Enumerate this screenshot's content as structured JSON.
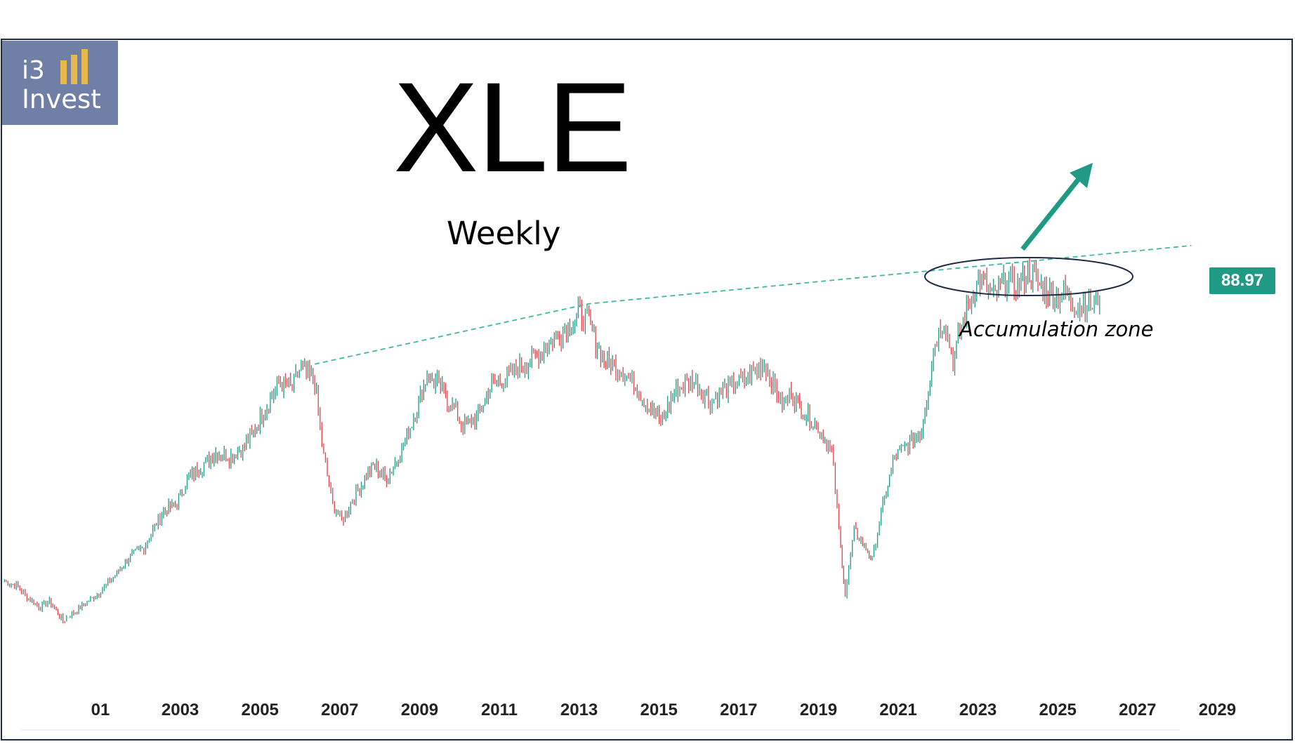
{
  "title": "XLE",
  "subtitle": "Weekly",
  "logo": {
    "line1": "i3",
    "line2": "Invest"
  },
  "price_label": "88.97",
  "annotation": "Accumulation zone",
  "colors": {
    "up": "#1f9a85",
    "down": "#e0424a",
    "trendline": "#3fb8a2",
    "arrow": "#1f9a85",
    "badge": "#1f9a85"
  },
  "chart_data": {
    "type": "line",
    "title": "XLE",
    "subtitle": "Weekly",
    "x_ticks": [
      "01",
      "2003",
      "2005",
      "2007",
      "2009",
      "2011",
      "2013",
      "2015",
      "2017",
      "2019",
      "2021",
      "2023",
      "2025",
      "2027",
      "2029"
    ],
    "xlim": [
      2001.4,
      2030.2
    ],
    "series": [
      {
        "x": [
          2001.5,
          2001.8,
          2002.0,
          2002.3,
          2002.5,
          2002.8,
          2003.0,
          2003.3,
          2003.6,
          2004.0,
          2004.3,
          2004.6,
          2005.0,
          2005.3,
          2005.6,
          2005.9,
          2006.2,
          2006.5,
          2006.8,
          2007.0,
          2007.3,
          2007.6,
          2007.9,
          2008.1,
          2008.4,
          2008.6,
          2008.8,
          2009.0,
          2009.2,
          2009.4,
          2009.7,
          2010.0,
          2010.3,
          2010.6,
          2010.9,
          2011.2,
          2011.5,
          2011.7,
          2012.0,
          2012.3,
          2012.6,
          2013.0,
          2013.5,
          2014.0,
          2014.3,
          2014.5,
          2014.8,
          2015.1,
          2015.5,
          2015.8,
          2016.1,
          2016.4,
          2016.8,
          2017.2,
          2017.6,
          2018.0,
          2018.4,
          2018.8,
          2019.0,
          2019.3,
          2019.6,
          2019.9,
          2020.1,
          2020.2,
          2020.4,
          2020.7,
          2020.8,
          2021.0,
          2021.3,
          2021.6,
          2021.9,
          2022.2,
          2022.4,
          2022.6,
          2022.9,
          2023.2,
          2023.5,
          2023.8,
          2024.0,
          2024.3,
          2024.6,
          2024.9,
          2025.1,
          2025.3,
          2025.5,
          2025.7,
          2025.9
        ],
        "y": [
          26,
          25,
          22.5,
          20,
          21.5,
          17,
          18.5,
          21,
          23.5,
          28,
          32,
          34,
          42,
          44,
          50,
          53,
          56,
          55,
          57,
          60,
          66,
          72,
          71,
          76,
          72,
          55,
          44,
          40,
          44,
          48,
          53,
          50,
          56,
          64,
          74,
          71,
          66,
          62,
          64,
          71,
          73,
          76,
          80,
          85,
          88,
          86,
          78,
          76,
          72,
          67,
          63,
          70,
          73,
          68,
          71,
          73,
          77,
          67,
          70,
          65,
          62,
          56,
          34,
          23,
          38,
          33,
          31,
          42,
          55,
          58,
          61,
          82,
          87,
          77,
          90,
          96,
          92,
          96,
          94,
          98,
          94,
          92,
          93,
          90,
          91,
          90,
          93
        ]
      }
    ],
    "trendline_points": [
      [
        2008.4,
        76.5
      ],
      [
        2014.5,
        90.5
      ],
      [
        2027.9,
        104
      ]
    ],
    "ylim": [
      12,
      145
    ],
    "grid": false,
    "log_scale": false
  }
}
